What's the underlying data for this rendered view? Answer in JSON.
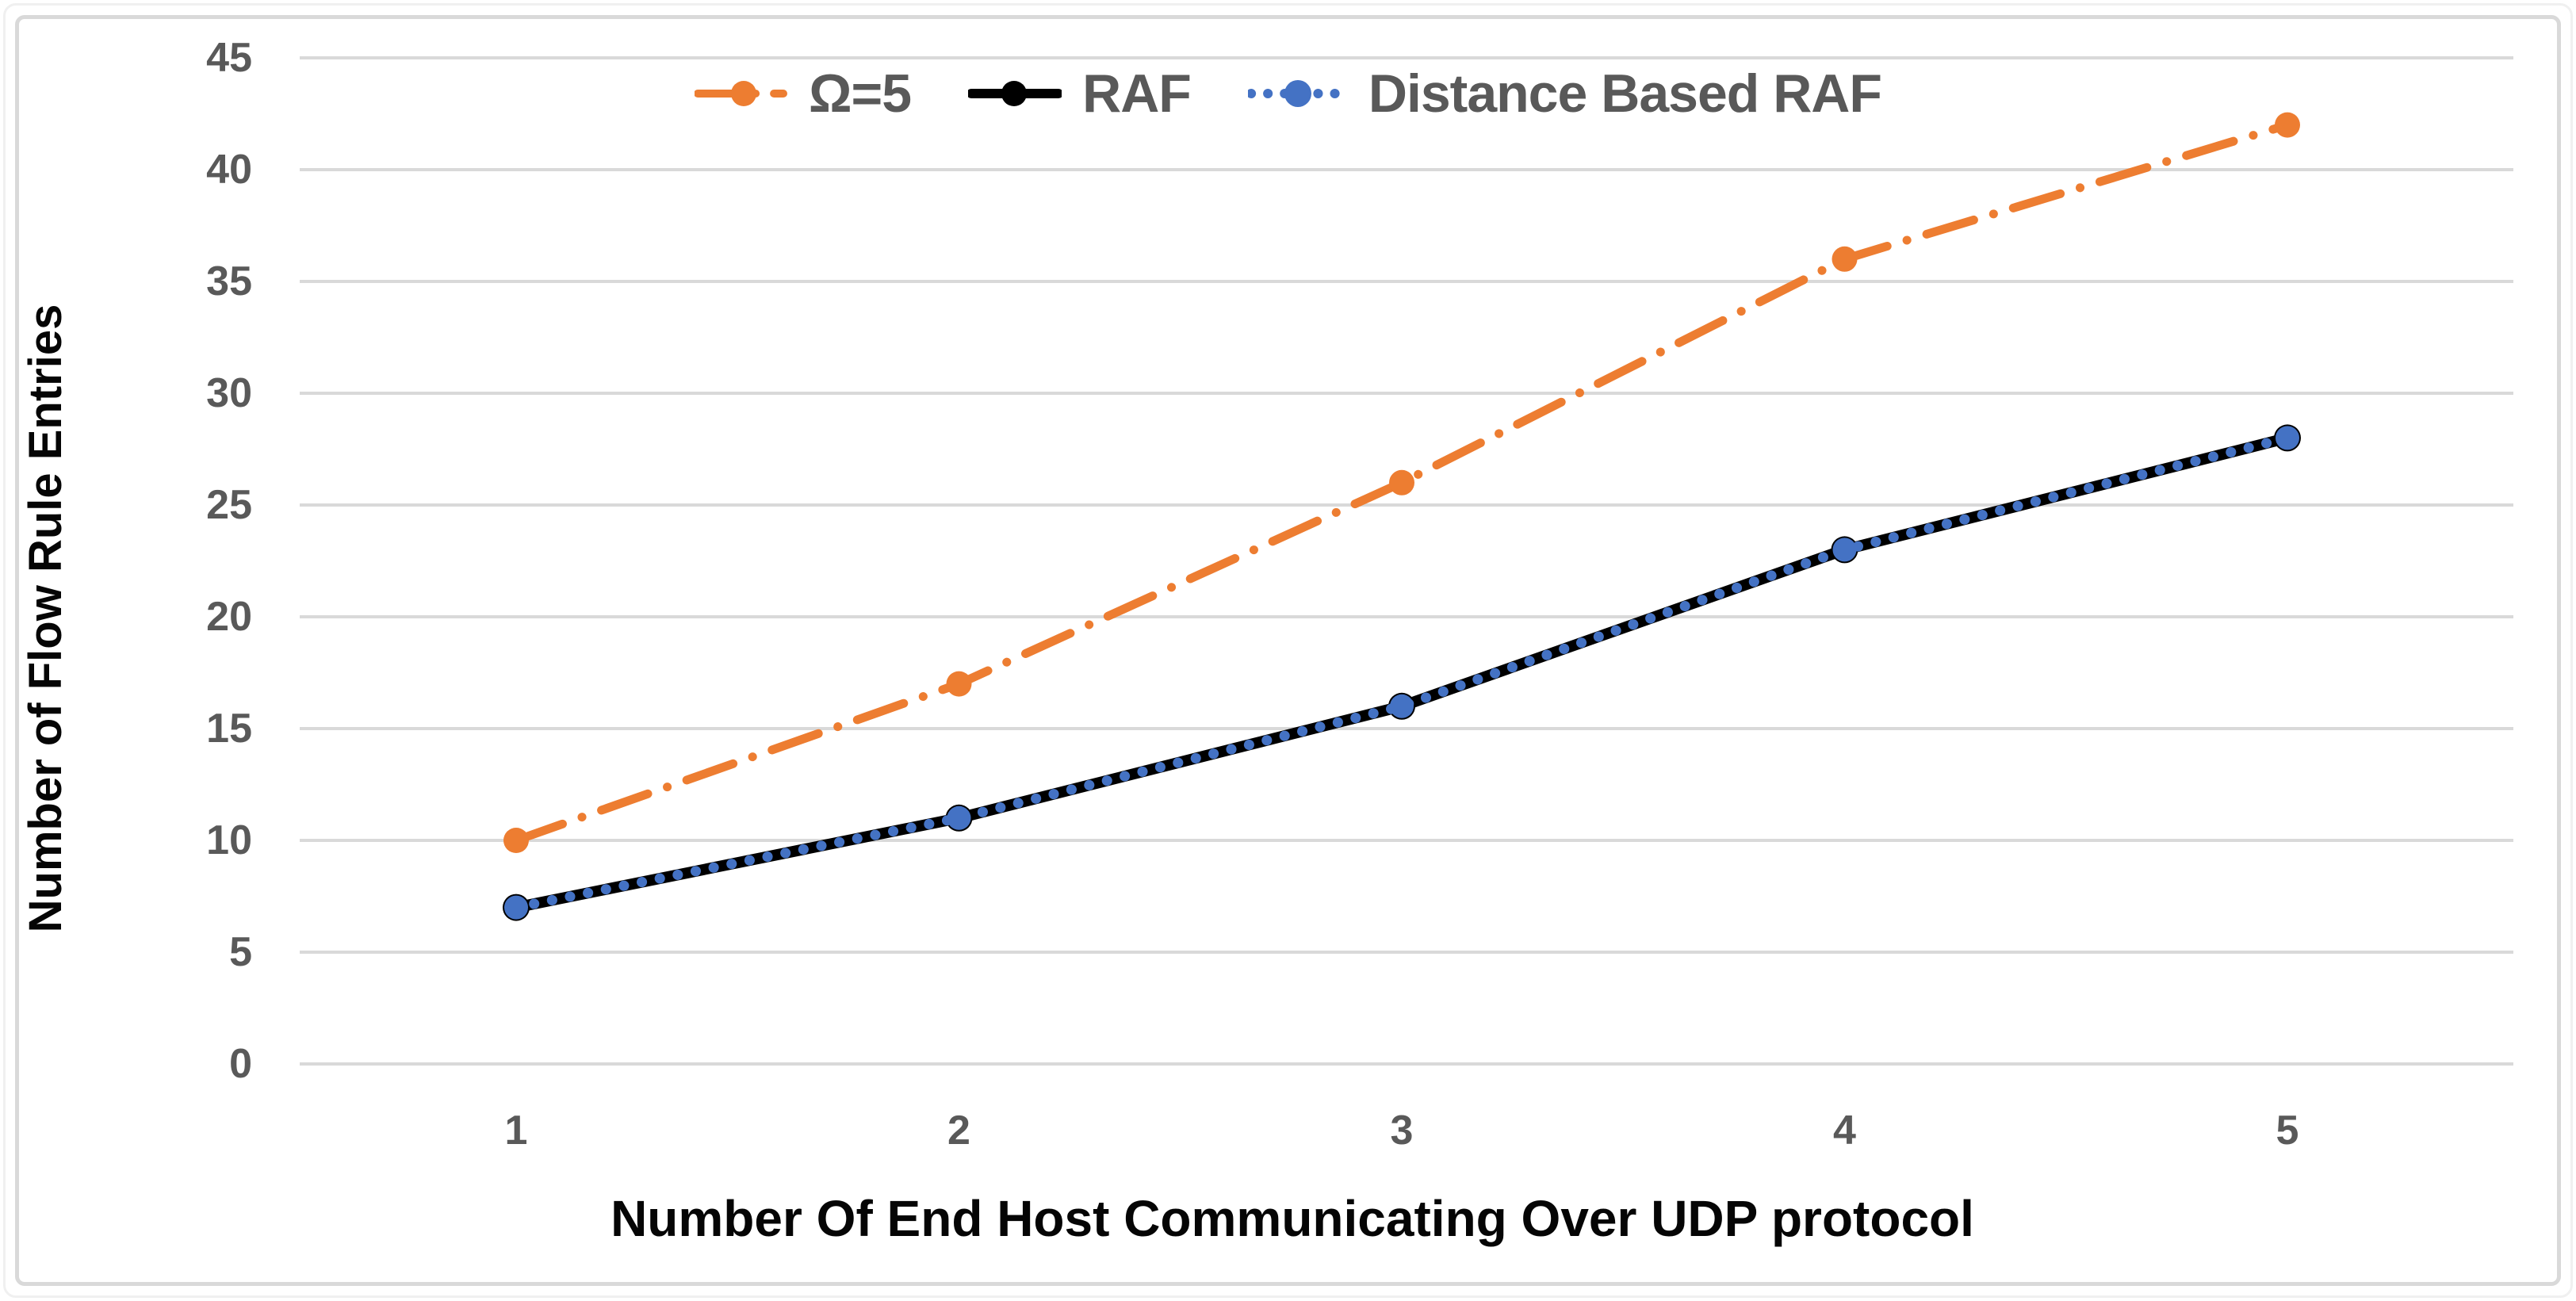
{
  "figure": {
    "background": "#ffffff",
    "border_color": "#d9d9d9",
    "gridline_color": "#d9d9d9",
    "tick_label_color": "#595959",
    "axis_title_color": "#050505"
  },
  "chart_data": {
    "type": "line",
    "title": "",
    "xlabel": "Number Of End Host Communicating Over UDP protocol",
    "ylabel": "Number of Flow Rule Entries",
    "x": [
      1,
      2,
      3,
      4,
      5
    ],
    "xticks": [
      "1",
      "2",
      "3",
      "4",
      "5"
    ],
    "yticks": [
      0,
      5,
      10,
      15,
      20,
      25,
      30,
      35,
      40,
      45
    ],
    "ylim": [
      0,
      45
    ],
    "grid": "horizontal",
    "legend_position": "top-center",
    "series": [
      {
        "name": "Ω=5",
        "color": "#ED7D31",
        "line_style": "dash-dot",
        "marker": "circle",
        "values": [
          10,
          17,
          26,
          36,
          42
        ]
      },
      {
        "name": "RAF",
        "color": "#000000",
        "line_style": "solid",
        "marker": "circle",
        "values": [
          7,
          11,
          16,
          23,
          28
        ]
      },
      {
        "name": "Distance Based RAF",
        "color": "#4472C4",
        "line_style": "dotted",
        "marker": "circle",
        "values": [
          7,
          11,
          16,
          23,
          28
        ]
      }
    ]
  }
}
